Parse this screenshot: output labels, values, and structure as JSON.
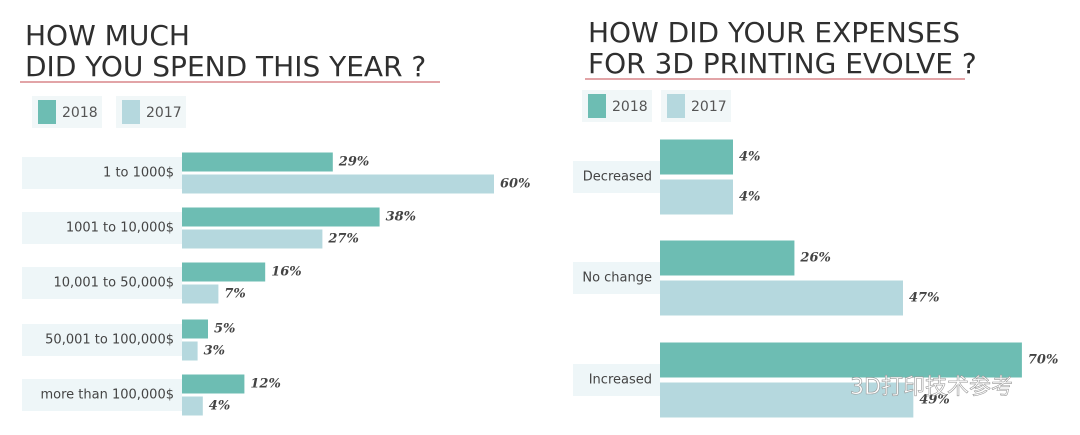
{
  "chart_data": [
    {
      "type": "bar",
      "orientation": "horizontal",
      "title": [
        "HOW MUCH",
        "DID YOU SPEND THIS YEAR ?"
      ],
      "categories": [
        "1 to 1000$",
        "1001 to 10,000$",
        "10,001 to 50,000$",
        "50,001 to 100,000$",
        "more than 100,000$"
      ],
      "series": [
        {
          "name": "2018",
          "color": "#6dbdb3",
          "values": [
            29,
            38,
            16,
            5,
            12
          ],
          "value_labels": [
            "29%",
            "38%",
            "16%",
            "5%",
            "12%"
          ]
        },
        {
          "name": "2017",
          "color": "#b5d8de",
          "values": [
            60,
            27,
            7,
            3,
            4
          ],
          "value_labels": [
            "60%",
            "27%",
            "7%",
            "3%",
            "4%"
          ]
        }
      ]
    },
    {
      "type": "bar",
      "orientation": "horizontal",
      "title": [
        "HOW DID YOUR EXPENSES",
        "FOR 3D PRINTING EVOLVE ?"
      ],
      "categories": [
        "Decreased",
        "No change",
        "Increased"
      ],
      "series": [
        {
          "name": "2018",
          "color": "#6dbdb3",
          "values": [
            4,
            26,
            70
          ],
          "value_labels": [
            "4%",
            "26%",
            "70%"
          ]
        },
        {
          "name": "2017",
          "color": "#b5d8de",
          "values": [
            4,
            47,
            49
          ],
          "value_labels": [
            "4%",
            "47%",
            "49%"
          ]
        }
      ]
    }
  ],
  "watermark": "3D打印技术参考"
}
